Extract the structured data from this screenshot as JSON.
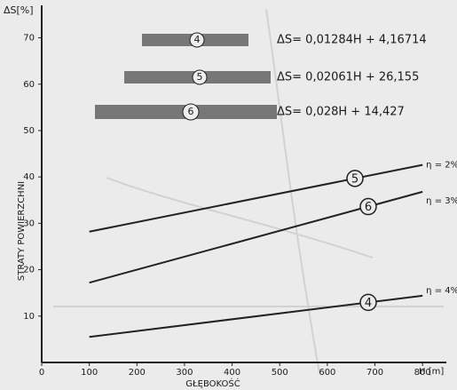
{
  "chart_data": {
    "type": "line",
    "y_label": "ΔS[%]",
    "x_label": "H [m]",
    "x_title": "GŁĘBOKOŚĆ",
    "y_title": "STRATY POWIERZCHNI",
    "x": [
      100,
      800
    ],
    "series": [
      {
        "name": "4",
        "color": "#222222",
        "values": [
          5.5,
          14.4
        ],
        "equation": "ΔS= 0,01284H + 4,16714",
        "eta": "η = 4%"
      },
      {
        "name": "5",
        "color": "#222222",
        "values": [
          28.2,
          42.6
        ],
        "equation": "ΔS= 0,02061H + 26,155",
        "eta": "η = 2%"
      },
      {
        "name": "6",
        "color": "#222222",
        "values": [
          17.2,
          36.8
        ],
        "equation": "ΔS= 0,028H + 14,427",
        "eta": "η = 3%"
      }
    ],
    "xlim": [
      0,
      850
    ],
    "ylim": [
      0,
      77
    ],
    "xticks": [
      0,
      100,
      200,
      300,
      400,
      500,
      600,
      700,
      800
    ],
    "yticks": [
      10,
      20,
      30,
      40,
      50,
      60,
      70
    ],
    "grid": false
  }
}
